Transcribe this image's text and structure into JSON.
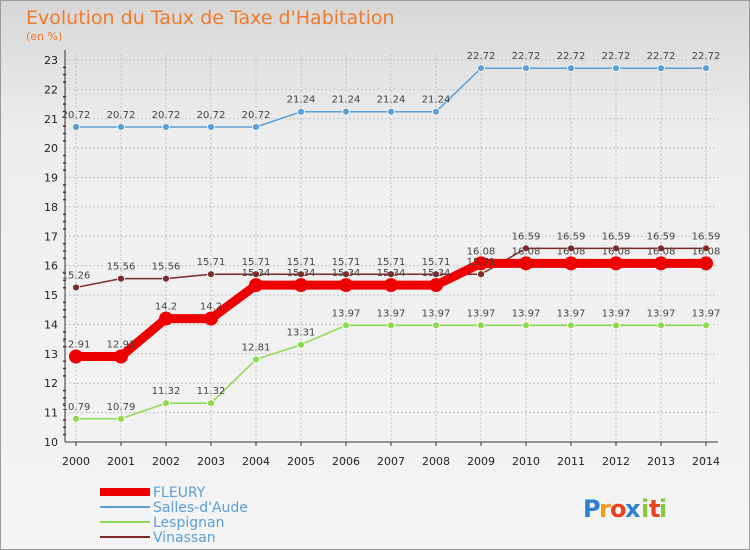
{
  "chart_data": {
    "type": "line",
    "title": "Evolution du Taux de Taxe d'Habitation",
    "subtitle": "(en %)",
    "xlabel": "",
    "ylabel": "",
    "ylim": [
      10,
      23
    ],
    "yticks": [
      "10",
      "11",
      "12",
      "13",
      "14",
      "15",
      "16",
      "17",
      "18",
      "19",
      "20",
      "21",
      "22",
      "23"
    ],
    "categories": [
      "2000",
      "2001",
      "2002",
      "2003",
      "2004",
      "2005",
      "2006",
      "2007",
      "2008",
      "2009",
      "2010",
      "2011",
      "2012",
      "2013",
      "2014"
    ],
    "series": [
      {
        "name": "Salles-d'Aude",
        "color": "#5b9fd6",
        "values": [
          20.72,
          20.72,
          20.72,
          20.72,
          20.72,
          21.24,
          21.24,
          21.24,
          21.24,
          22.72,
          22.72,
          22.72,
          22.72,
          22.72,
          22.72
        ],
        "labels": [
          "20.72",
          "20.72",
          "20.72",
          "20.72",
          "20.72",
          "21.24",
          "21.24",
          "21.24",
          "21.24",
          "22.72",
          "22.72",
          "22.72",
          "22.72",
          "22.72",
          "22.72"
        ]
      },
      {
        "name": "Vinassan",
        "color": "#7b2a2a",
        "values": [
          15.26,
          15.56,
          15.56,
          15.71,
          15.71,
          15.71,
          15.71,
          15.71,
          15.71,
          15.71,
          16.59,
          16.59,
          16.59,
          16.59,
          16.59
        ],
        "labels": [
          "15.26",
          "15.56",
          "15.56",
          "15.71",
          "15.71",
          "15.71",
          "15.71",
          "15.71",
          "15.71",
          "15.71",
          "16.59",
          "16.59",
          "16.59",
          "16.59",
          "16.59"
        ]
      },
      {
        "name": "Lespignan",
        "color": "#8ed94e",
        "values": [
          10.79,
          10.79,
          11.32,
          11.32,
          12.81,
          13.31,
          13.97,
          13.97,
          13.97,
          13.97,
          13.97,
          13.97,
          13.97,
          13.97,
          13.97
        ],
        "labels": [
          "10.79",
          "10.79",
          "11.32",
          "11.32",
          "12.81",
          "13.31",
          "13.97",
          "13.97",
          "13.97",
          "13.97",
          "13.97",
          "13.97",
          "13.97",
          "13.97",
          "13.97"
        ]
      },
      {
        "name": "FLEURY",
        "color": "#ee0000",
        "values": [
          12.91,
          12.91,
          14.2,
          14.2,
          15.34,
          15.34,
          15.34,
          15.34,
          15.34,
          16.08,
          16.08,
          16.08,
          16.08,
          16.08,
          16.08
        ],
        "labels": [
          "12.91",
          "12.91",
          "14.2",
          "14.2",
          "15.34",
          "15.34",
          "15.34",
          "15.34",
          "15.34",
          "16.08",
          "16.08",
          "16.08",
          "16.08",
          "16.08",
          "16.08"
        ]
      }
    ],
    "legend": {
      "placement": "bottom-left",
      "entries": [
        "FLEURY",
        "Salles-d'Aude",
        "Lespignan",
        "Vinassan"
      ]
    }
  },
  "logo": {
    "text": "Proxiti",
    "letters": [
      "P",
      "r",
      "o",
      "x",
      "i",
      "t",
      "i"
    ],
    "colors": [
      "#2d7fd3",
      "#f29c1e",
      "#e8411b",
      "#2d7fd3",
      "#8cc63f",
      "#e8411b",
      "#8cc63f"
    ]
  }
}
